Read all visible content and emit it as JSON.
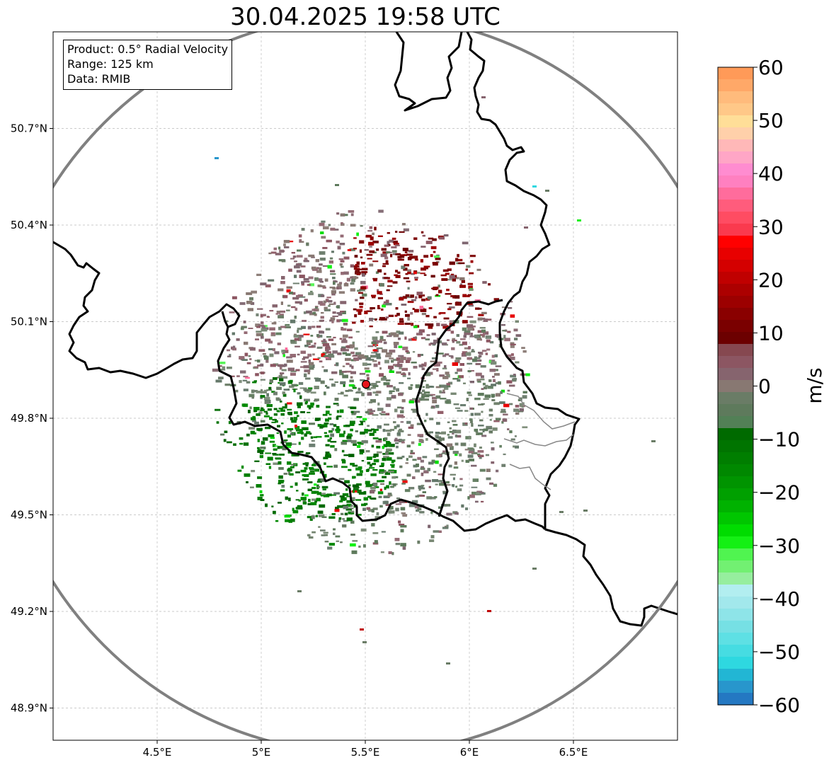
{
  "title": "30.04.2025 19:58 UTC",
  "info": {
    "product": "Product: 0.5° Radial Velocity",
    "range": "Range: 125 km",
    "data": "Data: RMIB"
  },
  "map": {
    "lon_range": [
      4.0,
      7.0
    ],
    "lat_range": [
      48.8,
      51.0
    ],
    "lon_ticks": [
      "4.5°E",
      "5°E",
      "5.5°E",
      "6°E",
      "6.5°E"
    ],
    "lat_ticks": [
      "50.7°N",
      "50.4°N",
      "50.1°N",
      "49.8°N",
      "49.5°N",
      "49.2°N",
      "48.9°N"
    ],
    "radar_site": {
      "lon": 5.505,
      "lat": 49.914,
      "color": "#e8141c"
    },
    "range_ring_color": "#808080",
    "border_color": "#000000",
    "grid": true
  },
  "colorbar": {
    "unit": "m/s",
    "ticks": [
      "60",
      "50",
      "40",
      "30",
      "20",
      "10",
      "0",
      "−10",
      "−20",
      "−30",
      "−40",
      "−50",
      "−60"
    ],
    "range": [
      -60,
      60
    ],
    "colors_top_to_bottom": [
      "#ff9a58",
      "#ffa868",
      "#ffbb7c",
      "#ffc888",
      "#ffde98",
      "#ffd0aa",
      "#ffb8b8",
      "#ffa6c6",
      "#ff8cd0",
      "#ff80c0",
      "#ff6c9c",
      "#ff5c7c",
      "#ff4c62",
      "#fa3a4e",
      "#ff0000",
      "#e80000",
      "#d40000",
      "#c00000",
      "#ac0000",
      "#9c0000",
      "#8a0000",
      "#7a0000",
      "#6c0000",
      "#864850",
      "#8c5662",
      "#86646e",
      "#887872",
      "#6a7c66",
      "#5e7a5c",
      "#528056",
      "#006a00",
      "#007400",
      "#007e00",
      "#008800",
      "#009400",
      "#00a000",
      "#00b200",
      "#00c600",
      "#00dc00",
      "#14f014",
      "#50f450",
      "#72f072",
      "#96ee9e",
      "#b2eef0",
      "#a2e8ec",
      "#8ee4e8",
      "#76e0e4",
      "#5ee0e4",
      "#46dce2",
      "#2ed8e0",
      "#22b6d4",
      "#2896cc",
      "#2478c2"
    ]
  }
}
